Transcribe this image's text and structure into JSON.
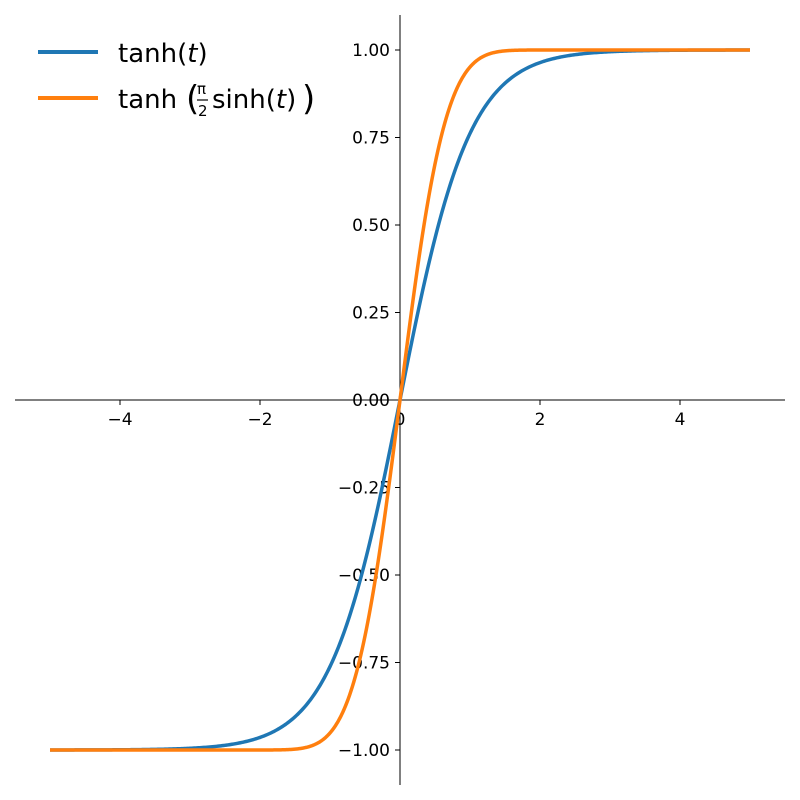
{
  "chart_data": {
    "type": "line",
    "title": "",
    "xlabel": "",
    "ylabel": "",
    "xlim": [
      -5.5,
      5.5
    ],
    "ylim": [
      -1.1,
      1.1
    ],
    "x_range": [
      -5,
      5
    ],
    "grid": false,
    "legend_position": "top-left",
    "x_ticks": [
      {
        "value": -4,
        "label": "−4"
      },
      {
        "value": -2,
        "label": "−2"
      },
      {
        "value": 0,
        "label": "0"
      },
      {
        "value": 2,
        "label": "2"
      },
      {
        "value": 4,
        "label": "4"
      }
    ],
    "y_ticks": [
      {
        "value": -1.0,
        "label": "−1.00"
      },
      {
        "value": -0.75,
        "label": "−0.75"
      },
      {
        "value": -0.5,
        "label": "−0.50"
      },
      {
        "value": -0.25,
        "label": "−0.25"
      },
      {
        "value": 0.0,
        "label": "0.00"
      },
      {
        "value": 0.25,
        "label": "0.25"
      },
      {
        "value": 0.5,
        "label": "0.50"
      },
      {
        "value": 0.75,
        "label": "0.75"
      },
      {
        "value": 1.0,
        "label": "1.00"
      }
    ],
    "series": [
      {
        "name": "tanh(t)",
        "formula": "tanh",
        "color": "#1f77b4",
        "x": [
          -5,
          -4,
          -3,
          -2.5,
          -2,
          -1.5,
          -1,
          -0.5,
          0,
          0.5,
          1,
          1.5,
          2,
          2.5,
          3,
          4,
          5
        ],
        "y": [
          -1.0,
          -0.999,
          -0.995,
          -0.987,
          -0.964,
          -0.905,
          -0.762,
          -0.462,
          0.0,
          0.462,
          0.762,
          0.905,
          0.964,
          0.987,
          0.995,
          0.999,
          1.0
        ]
      },
      {
        "name": "tanh(π/2 sinh(t))",
        "formula": "tanh_pi2_sinh",
        "color": "#ff7f0e",
        "x": [
          -5,
          -3,
          -2,
          -1.5,
          -1,
          -0.75,
          -0.5,
          -0.25,
          0,
          0.25,
          0.5,
          0.75,
          1,
          1.5,
          2,
          3,
          5
        ],
        "y": [
          -1.0,
          -1.0,
          -1.0,
          -0.999,
          -0.951,
          -0.845,
          -0.68,
          -0.38,
          0.0,
          0.38,
          0.68,
          0.845,
          0.951,
          0.999,
          1.0,
          1.0,
          1.0
        ]
      }
    ],
    "legend": {
      "entry1": {
        "fn": "tanh(",
        "var": "t",
        "close": ")"
      },
      "entry2": {
        "fn": "tanh",
        "open": "(",
        "num": "π",
        "den": "2",
        "inner": "sinh(",
        "var": "t",
        "inner_close": ")",
        "close": ")"
      }
    }
  }
}
